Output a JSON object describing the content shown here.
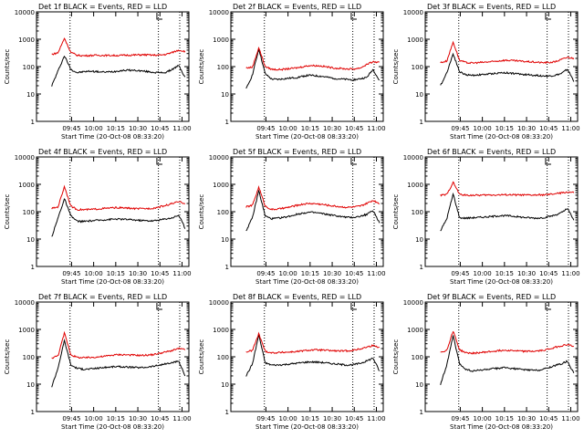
{
  "colors": {
    "events": "#000000",
    "lld": "#e00000",
    "axis": "#000000",
    "background": "#ffffff"
  },
  "chart_data": [
    {
      "type": "line",
      "title": "Det 1f BLACK = Events, RED = LLD",
      "xlabel": "Start Time (20-Oct-08 08:33:20)",
      "ylabel": "Counts/sec",
      "x_ticks": [
        "09:45",
        "10:00",
        "10:15",
        "10:30",
        "10:45",
        "11:00"
      ],
      "y_ticks": [
        "1",
        "10",
        "100",
        "1000",
        "10000"
      ],
      "ylim": [
        1,
        10000
      ],
      "yscale": "log",
      "grid": false,
      "series": [
        {
          "name": "Events",
          "color": "#000000",
          "values": [
            20,
            70,
            250,
            80,
            60,
            65,
            68,
            66,
            63,
            64,
            67,
            72,
            74,
            73,
            70,
            66,
            62,
            60,
            61,
            80,
            110,
            40
          ]
        },
        {
          "name": "LLD",
          "color": "#e00000",
          "values": [
            280,
            320,
            1100,
            330,
            260,
            250,
            255,
            260,
            258,
            256,
            255,
            258,
            262,
            265,
            270,
            268,
            262,
            262,
            280,
            330,
            400,
            360
          ]
        }
      ]
    },
    {
      "type": "line",
      "title": "Det 2f BLACK = Events, RED = LLD",
      "xlabel": "Start Time (20-Oct-08 08:33:20)",
      "ylabel": "Counts/sec",
      "x_ticks": [
        "09:45",
        "10:00",
        "10:15",
        "10:30",
        "10:45",
        "11:00"
      ],
      "y_ticks": [
        "1",
        "10",
        "100",
        "1000",
        "10000"
      ],
      "ylim": [
        1,
        10000
      ],
      "yscale": "log",
      "grid": false,
      "series": [
        {
          "name": "Events",
          "color": "#000000",
          "values": [
            15,
            50,
            450,
            55,
            35,
            34,
            36,
            38,
            40,
            45,
            48,
            46,
            44,
            40,
            37,
            35,
            34,
            33,
            36,
            40,
            80,
            30
          ]
        },
        {
          "name": "LLD",
          "color": "#e00000",
          "values": [
            90,
            95,
            500,
            100,
            80,
            78,
            80,
            85,
            90,
            100,
            110,
            108,
            104,
            95,
            88,
            85,
            82,
            82,
            90,
            120,
            150,
            140
          ]
        }
      ]
    },
    {
      "type": "line",
      "title": "Det 3f BLACK = Events, RED = LLD",
      "xlabel": "Start Time (20-Oct-08 08:33:20)",
      "ylabel": "Counts/sec",
      "x_ticks": [
        "09:45",
        "10:00",
        "10:15",
        "10:30",
        "10:45",
        "11:00"
      ],
      "y_ticks": [
        "1",
        "10",
        "100",
        "1000",
        "10000"
      ],
      "ylim": [
        1,
        10000
      ],
      "yscale": "log",
      "grid": false,
      "series": [
        {
          "name": "Events",
          "color": "#000000",
          "values": [
            20,
            60,
            300,
            65,
            50,
            48,
            50,
            52,
            55,
            58,
            60,
            58,
            55,
            52,
            50,
            48,
            46,
            45,
            48,
            55,
            80,
            30
          ]
        },
        {
          "name": "LLD",
          "color": "#e00000",
          "values": [
            140,
            160,
            800,
            170,
            140,
            135,
            140,
            145,
            150,
            160,
            170,
            168,
            162,
            155,
            150,
            145,
            140,
            140,
            150,
            180,
            220,
            200
          ]
        }
      ]
    },
    {
      "type": "line",
      "title": "Det 4f BLACK = Events, RED = LLD",
      "xlabel": "Start Time (20-Oct-08 08:33:20)",
      "ylabel": "Counts/sec",
      "x_ticks": [
        "09:45",
        "10:00",
        "10:15",
        "10:30",
        "10:45",
        "11:00"
      ],
      "y_ticks": [
        "1",
        "10",
        "100",
        "1000",
        "10000"
      ],
      "ylim": [
        1,
        10000
      ],
      "yscale": "log",
      "grid": false,
      "series": [
        {
          "name": "Events",
          "color": "#000000",
          "values": [
            12,
            60,
            300,
            70,
            45,
            44,
            46,
            48,
            50,
            52,
            54,
            53,
            52,
            50,
            48,
            47,
            46,
            50,
            55,
            60,
            75,
            25
          ]
        },
        {
          "name": "LLD",
          "color": "#e00000",
          "values": [
            130,
            150,
            850,
            160,
            120,
            118,
            120,
            125,
            130,
            135,
            140,
            138,
            135,
            130,
            128,
            130,
            135,
            150,
            170,
            200,
            230,
            200
          ]
        }
      ]
    },
    {
      "type": "line",
      "title": "Det 5f BLACK = Events, RED = LLD",
      "xlabel": "Start Time (20-Oct-08 08:33:20)",
      "ylabel": "Counts/sec",
      "x_ticks": [
        "09:45",
        "10:00",
        "10:15",
        "10:30",
        "10:45",
        "11:00"
      ],
      "y_ticks": [
        "1",
        "10",
        "100",
        "1000",
        "10000"
      ],
      "ylim": [
        1,
        10000
      ],
      "yscale": "log",
      "grid": false,
      "series": [
        {
          "name": "Events",
          "color": "#000000",
          "values": [
            20,
            60,
            600,
            70,
            55,
            58,
            62,
            70,
            80,
            90,
            95,
            92,
            85,
            78,
            72,
            66,
            62,
            62,
            68,
            80,
            110,
            40
          ]
        },
        {
          "name": "LLD",
          "color": "#e00000",
          "values": [
            150,
            170,
            800,
            160,
            120,
            125,
            135,
            150,
            170,
            190,
            200,
            195,
            185,
            170,
            160,
            150,
            145,
            148,
            160,
            200,
            260,
            200
          ]
        }
      ]
    },
    {
      "type": "line",
      "title": "Det 6f BLACK = Events, RED = LLD",
      "xlabel": "Start Time (20-Oct-08 08:33:20)",
      "ylabel": "Counts/sec",
      "x_ticks": [
        "09:45",
        "10:00",
        "10:15",
        "10:30",
        "10:45",
        "11:00"
      ],
      "y_ticks": [
        "1",
        "10",
        "100",
        "1000",
        "10000"
      ],
      "ylim": [
        1,
        10000
      ],
      "yscale": "log",
      "grid": false,
      "series": [
        {
          "name": "Events",
          "color": "#000000",
          "values": [
            20,
            55,
            450,
            60,
            58,
            60,
            62,
            64,
            66,
            70,
            72,
            70,
            66,
            62,
            60,
            58,
            60,
            65,
            75,
            90,
            130,
            50
          ]
        },
        {
          "name": "LLD",
          "color": "#e00000",
          "values": [
            400,
            420,
            1200,
            430,
            400,
            400,
            400,
            405,
            410,
            410,
            415,
            415,
            410,
            405,
            405,
            405,
            410,
            420,
            450,
            480,
            520,
            500
          ]
        }
      ]
    },
    {
      "type": "line",
      "title": "Det 7f BLACK = Events, RED = LLD",
      "xlabel": "Start Time (20-Oct-08 08:33:20)",
      "ylabel": "Counts/sec",
      "x_ticks": [
        "09:45",
        "10:00",
        "10:15",
        "10:30",
        "10:45",
        "11:00"
      ],
      "y_ticks": [
        "1",
        "10",
        "100",
        "1000",
        "10000"
      ],
      "ylim": [
        1,
        10000
      ],
      "yscale": "log",
      "grid": false,
      "series": [
        {
          "name": "Events",
          "color": "#000000",
          "values": [
            8,
            40,
            400,
            50,
            38,
            35,
            36,
            38,
            40,
            42,
            44,
            43,
            42,
            41,
            40,
            42,
            45,
            50,
            55,
            60,
            70,
            20
          ]
        },
        {
          "name": "LLD",
          "color": "#e00000",
          "values": [
            90,
            110,
            750,
            120,
            95,
            92,
            94,
            98,
            102,
            110,
            118,
            120,
            118,
            115,
            112,
            115,
            120,
            135,
            150,
            170,
            200,
            180
          ]
        }
      ]
    },
    {
      "type": "line",
      "title": "Det 8f BLACK = Events, RED = LLD",
      "xlabel": "Start Time (20-Oct-08 08:33:20)",
      "ylabel": "Counts/sec",
      "x_ticks": [
        "09:45",
        "10:00",
        "10:15",
        "10:30",
        "10:45",
        "11:00"
      ],
      "y_ticks": [
        "1",
        "10",
        "100",
        "1000",
        "10000"
      ],
      "ylim": [
        1,
        10000
      ],
      "yscale": "log",
      "grid": false,
      "series": [
        {
          "name": "Events",
          "color": "#000000",
          "values": [
            20,
            55,
            650,
            60,
            50,
            50,
            52,
            55,
            58,
            62,
            65,
            64,
            62,
            58,
            55,
            52,
            50,
            52,
            58,
            70,
            90,
            30
          ]
        },
        {
          "name": "LLD",
          "color": "#e00000",
          "values": [
            150,
            170,
            700,
            160,
            140,
            142,
            146,
            150,
            155,
            165,
            175,
            178,
            175,
            170,
            165,
            162,
            165,
            175,
            195,
            225,
            260,
            220
          ]
        }
      ]
    },
    {
      "type": "line",
      "title": "Det 9f BLACK = Events, RED = LLD",
      "xlabel": "Start Time (20-Oct-08 08:33:20)",
      "ylabel": "Counts/sec",
      "x_ticks": [
        "09:45",
        "10:00",
        "10:15",
        "10:30",
        "10:45",
        "11:00"
      ],
      "y_ticks": [
        "1",
        "10",
        "100",
        "1000",
        "10000"
      ],
      "ylim": [
        1,
        10000
      ],
      "yscale": "log",
      "grid": false,
      "series": [
        {
          "name": "Events",
          "color": "#000000",
          "values": [
            10,
            50,
            600,
            55,
            35,
            30,
            32,
            34,
            36,
            38,
            40,
            38,
            36,
            34,
            33,
            32,
            34,
            40,
            48,
            55,
            70,
            25
          ]
        },
        {
          "name": "LLD",
          "color": "#e00000",
          "values": [
            150,
            170,
            900,
            180,
            140,
            135,
            140,
            148,
            156,
            165,
            175,
            172,
            165,
            160,
            158,
            160,
            170,
            190,
            220,
            250,
            280,
            240
          ]
        }
      ]
    }
  ]
}
